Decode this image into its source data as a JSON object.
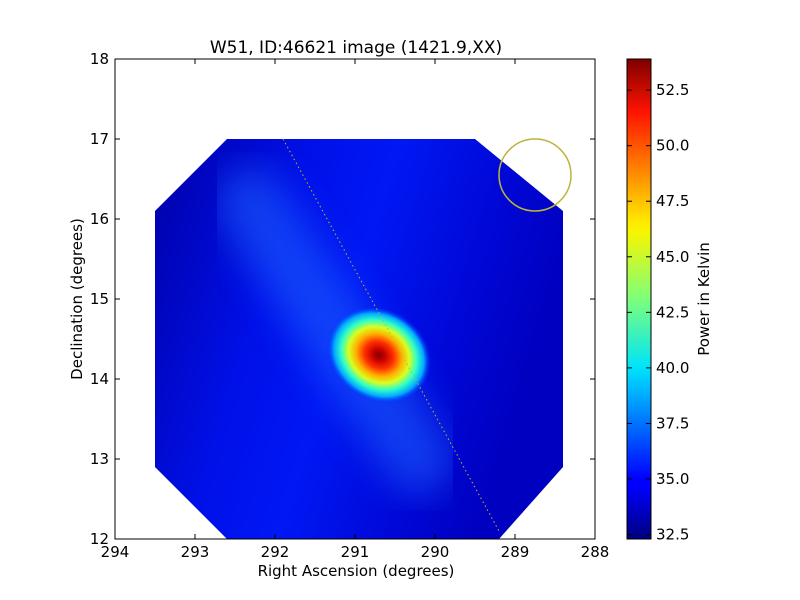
{
  "chart_data": {
    "type": "heatmap",
    "title": "W51, ID:46621 image (1421.9,XX)",
    "xlabel": "Right Ascension (degrees)",
    "ylabel": "Declination (degrees)",
    "xlim": [
      294,
      288
    ],
    "ylim": [
      12,
      18
    ],
    "x_ticks": [
      294,
      293,
      292,
      291,
      290,
      289,
      288
    ],
    "y_ticks": [
      12,
      13,
      14,
      15,
      16,
      17,
      18
    ],
    "x_tick_labels": [
      "294",
      "293",
      "292",
      "291",
      "290",
      "289",
      "288"
    ],
    "y_tick_labels": [
      "12",
      "13",
      "14",
      "15",
      "16",
      "17",
      "18"
    ],
    "grid": false,
    "colormap": "jet",
    "colorbar": {
      "label": "Power in Kelvin",
      "range": [
        32.3,
        53.9
      ],
      "ticks": [
        32.5,
        35.0,
        37.5,
        40.0,
        42.5,
        45.0,
        47.5,
        50.0,
        52.5
      ],
      "tick_labels": [
        "32.5",
        "35.0",
        "37.5",
        "40.0",
        "42.5",
        "45.0",
        "47.5",
        "50.0",
        "52.5"
      ]
    },
    "image": {
      "background_value": 34.5,
      "source_peak": {
        "ra": 290.7,
        "dec": 14.3,
        "value": 53.9
      },
      "source_halo_extent_ra_deg": 1.3,
      "source_halo_extent_dec_deg": 1.0,
      "coverage_octagon": [
        [
          293.5,
          16.1
        ],
        [
          292.6,
          17.0
        ],
        [
          289.5,
          17.0
        ],
        [
          288.4,
          16.1
        ],
        [
          288.4,
          12.9
        ],
        [
          289.2,
          12.0
        ],
        [
          292.6,
          12.0
        ],
        [
          293.5,
          12.9
        ]
      ]
    },
    "galactic_plane_line": [
      [
        291.9,
        17.0
      ],
      [
        289.2,
        12.1
      ]
    ],
    "beam_circle": {
      "ra": 288.75,
      "dec": 16.55,
      "radius_deg": 0.36,
      "color": "#bdb53a"
    }
  }
}
